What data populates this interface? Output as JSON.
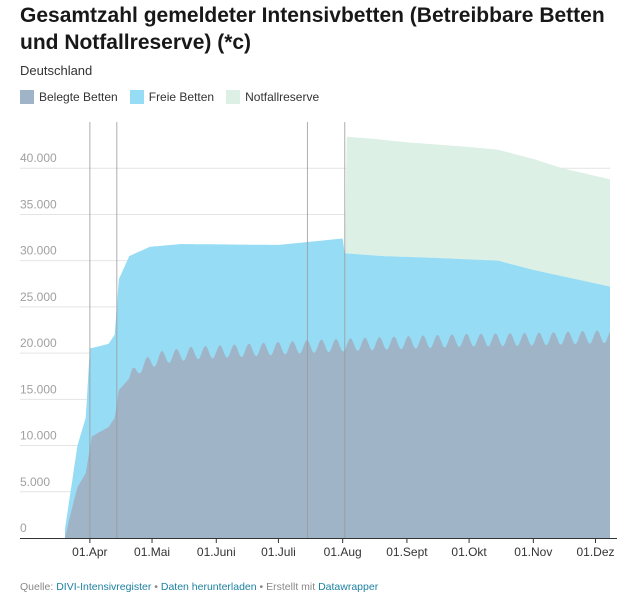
{
  "header": {
    "title": "Gesamtzahl gemeldeter Intensivbetten (Betreibbare Betten und Notfallreserve) (*c)",
    "subtitle": "Deutschland"
  },
  "legend": [
    {
      "label": "Belegte Betten",
      "color": "#a0b4c8"
    },
    {
      "label": "Freie Betten",
      "color": "#96dcf5"
    },
    {
      "label": "Notfallreserve",
      "color": "#dcf0e6"
    }
  ],
  "footer": {
    "source_prefix": "Quelle:",
    "source_link": "DIVI-Intensivregister",
    "sep1": "•",
    "download_link": "Daten herunterladen",
    "sep2": "•",
    "made_with": "Erstellt mit",
    "tool_link": "Datawrapper"
  },
  "chart_data": {
    "type": "area",
    "stacked": true,
    "x_axis": {
      "type": "date",
      "range": [
        "2020-03-20",
        "2020-12-08"
      ],
      "tick_labels": [
        "01.Apr",
        "01.Mai",
        "01.Juni",
        "01.Juli",
        "01.Aug",
        "01.Sept",
        "01.Okt",
        "01.Nov",
        "01.Dez"
      ],
      "tick_dates": [
        "2020-04-01",
        "2020-05-01",
        "2020-06-01",
        "2020-07-01",
        "2020-08-01",
        "2020-09-01",
        "2020-10-01",
        "2020-11-01",
        "2020-12-01"
      ]
    },
    "y_axis": {
      "range": [
        0,
        45000
      ],
      "tick_labels": [
        "0",
        "5.000",
        "10.000",
        "15.000",
        "20.000",
        "25.000",
        "30.000",
        "35.000",
        "40.000"
      ],
      "tick_values": [
        0,
        5000,
        10000,
        15000,
        20000,
        25000,
        30000,
        35000,
        40000
      ],
      "grid": true
    },
    "annotation_lines": [
      "2020-04-01",
      "2020-04-14",
      "2020-07-15",
      "2020-08-02"
    ],
    "weekly_oscillation": {
      "amplitude_beds": 700,
      "period_days": 7
    },
    "series": [
      {
        "name": "Belegte Betten",
        "color": "#a0b4c8",
        "points": [
          [
            "2020-03-20",
            0
          ],
          [
            "2020-03-22",
            2000
          ],
          [
            "2020-03-26",
            5500
          ],
          [
            "2020-03-30",
            7000
          ],
          [
            "2020-04-02",
            11000
          ],
          [
            "2020-04-10",
            12000
          ],
          [
            "2020-04-13",
            13000
          ],
          [
            "2020-04-15",
            16000
          ],
          [
            "2020-04-25",
            18500
          ],
          [
            "2020-05-05",
            19500
          ],
          [
            "2020-05-20",
            20000
          ],
          [
            "2020-06-15",
            20300
          ],
          [
            "2020-07-15",
            20700
          ],
          [
            "2020-08-15",
            21000
          ],
          [
            "2020-10-01",
            21400
          ],
          [
            "2020-11-01",
            21500
          ],
          [
            "2020-12-08",
            21800
          ]
        ]
      },
      {
        "name": "Freie Betten",
        "color": "#96dcf5",
        "total_points": [
          [
            "2020-03-20",
            1000
          ],
          [
            "2020-03-22",
            4000
          ],
          [
            "2020-03-26",
            10000
          ],
          [
            "2020-03-30",
            13000
          ],
          [
            "2020-04-01",
            20500
          ],
          [
            "2020-04-10",
            21000
          ],
          [
            "2020-04-13",
            22000
          ],
          [
            "2020-04-15",
            28000
          ],
          [
            "2020-04-20",
            30500
          ],
          [
            "2020-04-30",
            31500
          ],
          [
            "2020-05-15",
            31800
          ],
          [
            "2020-07-01",
            31700
          ],
          [
            "2020-08-01",
            32400
          ],
          [
            "2020-08-02",
            30800
          ],
          [
            "2020-08-20",
            30500
          ],
          [
            "2020-09-15",
            30300
          ],
          [
            "2020-10-15",
            30000
          ],
          [
            "2020-11-01",
            29000
          ],
          [
            "2020-12-08",
            27200
          ]
        ]
      },
      {
        "name": "Notfallreserve",
        "color": "#dcf0e6",
        "total_points": [
          [
            "2020-08-02",
            30800
          ],
          [
            "2020-08-03",
            43400
          ],
          [
            "2020-08-15",
            43200
          ],
          [
            "2020-09-01",
            42800
          ],
          [
            "2020-10-01",
            42300
          ],
          [
            "2020-10-15",
            42000
          ],
          [
            "2020-11-01",
            41000
          ],
          [
            "2020-11-15",
            40000
          ],
          [
            "2020-12-08",
            38800
          ]
        ]
      }
    ]
  }
}
